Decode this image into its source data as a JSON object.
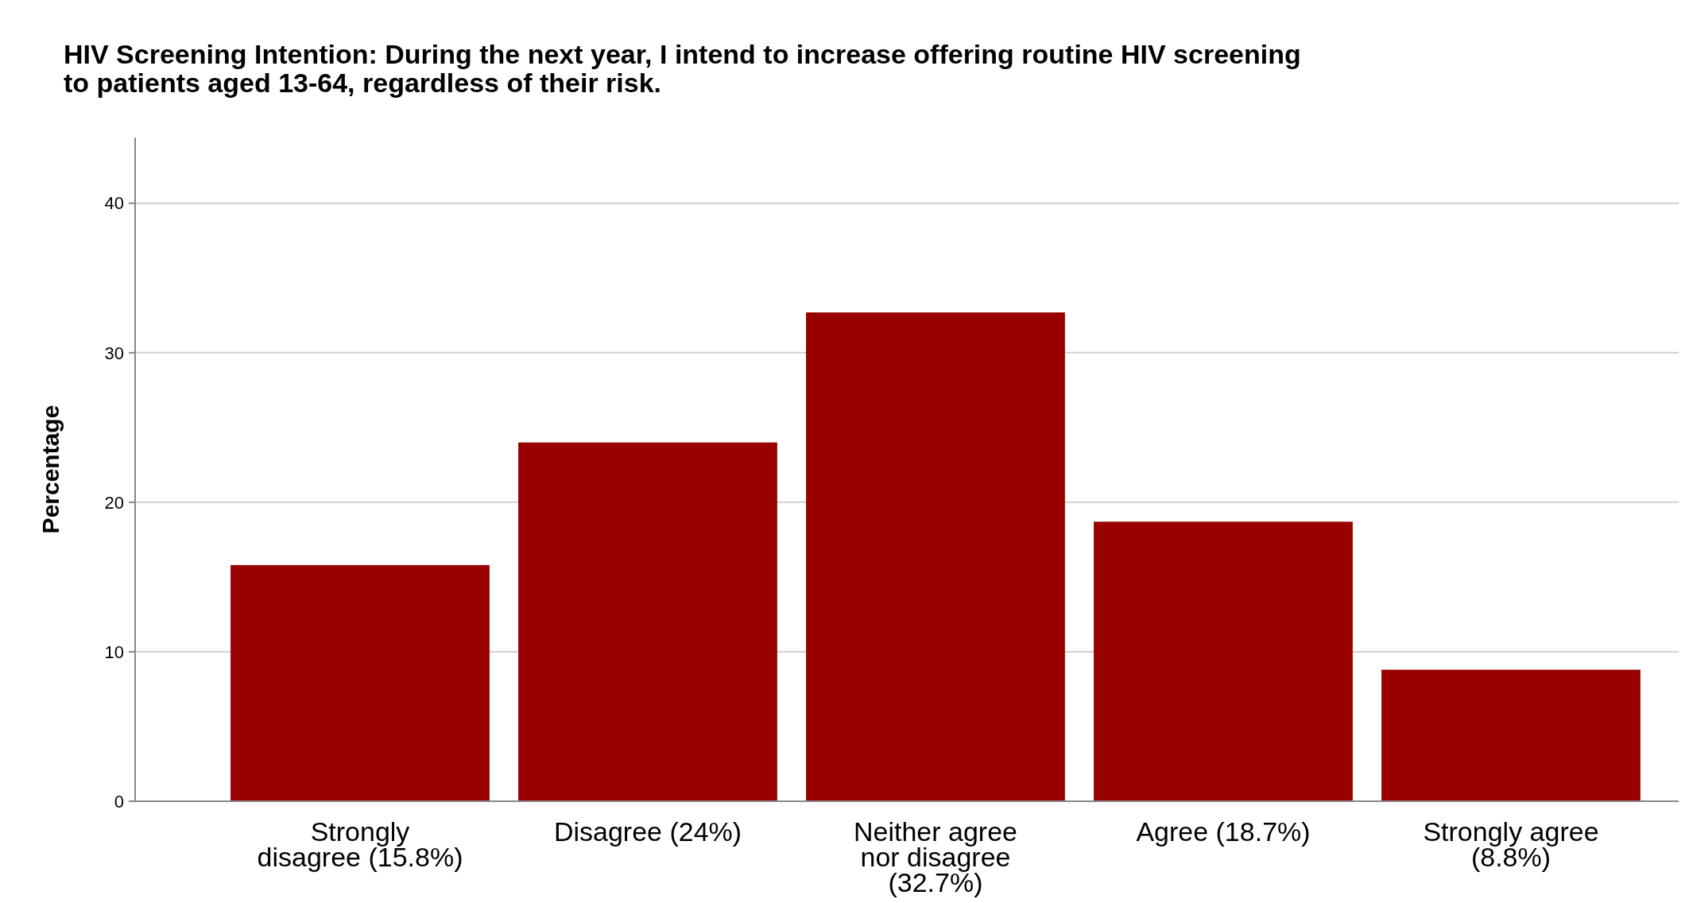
{
  "chart_data": {
    "type": "bar",
    "title": "HIV Screening Intention: During the next year, I intend to increase offering routine HIV screening to patients aged 13-64, regardless of their risk.",
    "ylabel": "Percentage",
    "categories": [
      "Strongly disagree (15.8%)",
      "Disagree (24%)",
      "Neither agree nor disagree (32.7%)",
      "Agree (18.7%)",
      "Strongly agree (8.8%)"
    ],
    "values": [
      15.8,
      24,
      32.7,
      18.7,
      8.8
    ],
    "color": "#990000",
    "ylim": [
      0,
      44.4
    ],
    "yticks": [
      0,
      10,
      20,
      30,
      40
    ],
    "grid": "y"
  }
}
